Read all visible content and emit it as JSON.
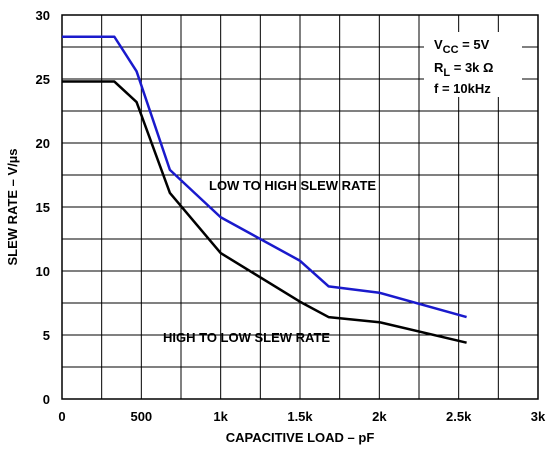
{
  "chart_data": {
    "type": "line",
    "xlabel": "CAPACITIVE LOAD – pF",
    "ylabel": "SLEW RATE – V/µs",
    "xlim": [
      0,
      3000
    ],
    "ylim": [
      0,
      30
    ],
    "x_ticks": [
      {
        "value": 0,
        "label": "0"
      },
      {
        "value": 500,
        "label": "500"
      },
      {
        "value": 1000,
        "label": "1k"
      },
      {
        "value": 1500,
        "label": "1.5k"
      },
      {
        "value": 2000,
        "label": "2k"
      },
      {
        "value": 2500,
        "label": "2.5k"
      },
      {
        "value": 3000,
        "label": "3k"
      }
    ],
    "y_ticks": [
      {
        "value": 0,
        "label": "0"
      },
      {
        "value": 5,
        "label": "5"
      },
      {
        "value": 10,
        "label": "10"
      },
      {
        "value": 15,
        "label": "15"
      },
      {
        "value": 20,
        "label": "20"
      },
      {
        "value": 25,
        "label": "25"
      },
      {
        "value": 30,
        "label": "30"
      }
    ],
    "grid": {
      "x_step": 250,
      "y_step": 2.5
    },
    "series": [
      {
        "name": "LOW TO HIGH SLEW RATE",
        "color": "#1a1acc",
        "x": [
          0,
          330,
          470,
          680,
          1000,
          1500,
          1680,
          2000,
          2550
        ],
        "y": [
          28.3,
          28.3,
          25.6,
          17.9,
          14.2,
          10.8,
          8.8,
          8.3,
          6.4
        ]
      },
      {
        "name": "HIGH TO LOW SLEW RATE",
        "color": "#000000",
        "x": [
          0,
          330,
          470,
          680,
          1000,
          1500,
          1680,
          2000,
          2550
        ],
        "y": [
          24.8,
          24.8,
          23.2,
          16.1,
          11.4,
          7.6,
          6.4,
          6.0,
          4.4
        ]
      }
    ],
    "annotations": {
      "conditions": {
        "vcc_main": "V",
        "vcc_sub": "CC",
        "vcc_rest": " = 5V",
        "rl_main": "R",
        "rl_sub": "L",
        "rl_rest": " = 3k Ω",
        "freq": "f = 10kHz"
      }
    }
  }
}
